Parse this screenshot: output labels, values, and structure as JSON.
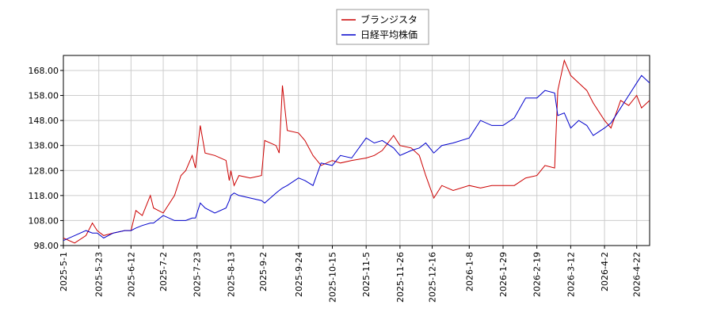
{
  "chart_data": {
    "type": "line",
    "x": [
      "2025-5-1",
      "2025-5-8",
      "2025-5-15",
      "2025-5-19",
      "2025-5-22",
      "2025-5-26",
      "2025-6-1",
      "2025-6-8",
      "2025-6-12",
      "2025-6-15",
      "2025-6-19",
      "2025-6-24",
      "2025-6-26",
      "2025-7-2",
      "2025-7-9",
      "2025-7-13",
      "2025-7-16",
      "2025-7-20",
      "2025-7-22",
      "2025-7-25",
      "2025-7-28",
      "2025-8-3",
      "2025-8-10",
      "2025-8-12",
      "2025-8-13",
      "2025-8-15",
      "2025-8-18",
      "2025-8-25",
      "2025-9-1",
      "2025-9-3",
      "2025-9-10",
      "2025-9-12",
      "2025-9-14",
      "2025-9-17",
      "2025-9-24",
      "2025-9-28",
      "2025-10-3",
      "2025-10-8",
      "2025-10-15",
      "2025-10-20",
      "2025-10-27",
      "2025-11-5",
      "2025-11-10",
      "2025-11-15",
      "2025-11-22",
      "2025-11-26",
      "2025-12-3",
      "2025-12-8",
      "2025-12-12",
      "2025-12-17",
      "2025-12-22",
      "2025-12-29",
      "2026-1-8",
      "2026-1-15",
      "2026-1-22",
      "2026-1-29",
      "2026-2-5",
      "2026-2-12",
      "2026-2-19",
      "2026-2-24",
      "2026-3-2",
      "2026-3-4",
      "2026-3-8",
      "2026-3-12",
      "2026-3-17",
      "2026-3-22",
      "2026-3-26",
      "2026-4-2",
      "2026-4-6",
      "2026-4-12",
      "2026-4-17",
      "2026-4-22",
      "2026-4-25",
      "2026-4-30"
    ],
    "series": [
      {
        "name": "ブランジスタ",
        "color": "#cc0000",
        "values": [
          101,
          99,
          102,
          107,
          104,
          102,
          103,
          104,
          104,
          112,
          110,
          118,
          113,
          111,
          118,
          126,
          128,
          134,
          129,
          146,
          135,
          134,
          132,
          124,
          128,
          122,
          126,
          125,
          126,
          140,
          138,
          135,
          162,
          144,
          143,
          140,
          134,
          130,
          132,
          131,
          132,
          133,
          134,
          136,
          142,
          138,
          137,
          134,
          126,
          117,
          122,
          120,
          122,
          121,
          122,
          122,
          122,
          125,
          126,
          130,
          129,
          160,
          172,
          166,
          163,
          160,
          155,
          148,
          145,
          156,
          154,
          158,
          153,
          156
        ]
      },
      {
        "name": "日経平均株価",
        "color": "#0000cc",
        "values": [
          100,
          102,
          104,
          103,
          103,
          101,
          103,
          104,
          104,
          105,
          106,
          107,
          107,
          110,
          108,
          108,
          108,
          109,
          109,
          115,
          113,
          111,
          113,
          116,
          118,
          119,
          118,
          117,
          116,
          115,
          119,
          120,
          121,
          122,
          125,
          124,
          122,
          131,
          130,
          134,
          133,
          141,
          139,
          140,
          137,
          134,
          136,
          137,
          139,
          135,
          138,
          139,
          141,
          148,
          146,
          146,
          149,
          157,
          157,
          160,
          159,
          150,
          151,
          145,
          148,
          146,
          142,
          145,
          147,
          153,
          158,
          163,
          166,
          163
        ]
      }
    ],
    "xlim": [
      "2025-5-1",
      "2026-4-30"
    ],
    "xticks": [
      "2025-5-1",
      "2025-5-23",
      "2025-6-12",
      "2025-7-2",
      "2025-7-23",
      "2025-8-13",
      "2025-9-2",
      "2025-9-24",
      "2025-10-15",
      "2025-11-5",
      "2025-11-26",
      "2025-12-16",
      "2026-1-8",
      "2026-1-29",
      "2026-2-19",
      "2026-3-12",
      "2026-4-2",
      "2026-4-22"
    ],
    "ylim": [
      98,
      174
    ],
    "yticks": [
      {
        "value": 98,
        "label": "98.00"
      },
      {
        "value": 108,
        "label": "108.00"
      },
      {
        "value": 118,
        "label": "118.00"
      },
      {
        "value": 128,
        "label": "128.00"
      },
      {
        "value": 138,
        "label": "138.00"
      },
      {
        "value": 148,
        "label": "148.00"
      },
      {
        "value": 158,
        "label": "158.00"
      },
      {
        "value": 168,
        "label": "168.00"
      }
    ],
    "grid": true,
    "legend": "top"
  }
}
